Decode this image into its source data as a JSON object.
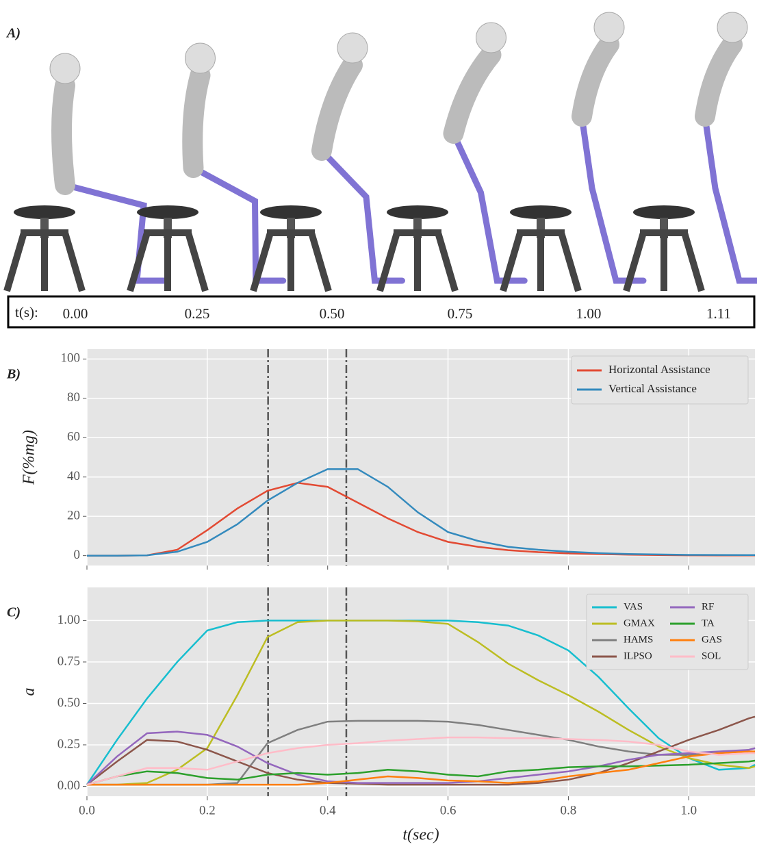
{
  "panel_a": {
    "label": "A)",
    "time_header": "t(s):",
    "times": [
      "0.00",
      "0.25",
      "0.50",
      "0.75",
      "1.00",
      "1.11"
    ]
  },
  "chart_data": [
    {
      "type": "line",
      "panel_label": "B)",
      "ylabel": "F(%mg)",
      "x": [
        0,
        0.05,
        0.1,
        0.15,
        0.2,
        0.25,
        0.3,
        0.35,
        0.4,
        0.45,
        0.5,
        0.55,
        0.6,
        0.65,
        0.7,
        0.75,
        0.8,
        0.85,
        0.9,
        0.95,
        1.0,
        1.05,
        1.1,
        1.11
      ],
      "xlim": [
        0,
        1.11
      ],
      "xticks": [
        0,
        0.2,
        0.4,
        0.6,
        0.8,
        1.0
      ],
      "ylim": [
        -5,
        105
      ],
      "yticks": [
        0,
        20,
        40,
        60,
        80,
        100
      ],
      "grid": true,
      "legend": "upper right",
      "legend_ncol": 1,
      "vlines": [
        0.301,
        0.431
      ],
      "series": [
        {
          "name": "Horizontal Assistance",
          "color": "#e24a33",
          "values": [
            0,
            0,
            0.2,
            3,
            13,
            24,
            33,
            37,
            35,
            27,
            19,
            12,
            7,
            4.5,
            2.8,
            1.8,
            1.2,
            0.8,
            0.5,
            0.3,
            0.2,
            0.15,
            0.1,
            0.1
          ]
        },
        {
          "name": "Vertical Assistance",
          "color": "#348abd",
          "values": [
            0,
            0,
            0.2,
            2,
            7,
            16,
            28,
            37,
            44,
            44,
            35,
            22,
            12,
            7.5,
            4.5,
            3,
            2,
            1.3,
            0.8,
            0.6,
            0.4,
            0.35,
            0.3,
            0.3
          ]
        }
      ]
    },
    {
      "type": "line",
      "panel_label": "C)",
      "ylabel": "a",
      "xlabel": "t(sec)",
      "x": [
        0,
        0.05,
        0.1,
        0.15,
        0.2,
        0.25,
        0.3,
        0.35,
        0.4,
        0.45,
        0.5,
        0.55,
        0.6,
        0.65,
        0.7,
        0.75,
        0.8,
        0.85,
        0.9,
        0.95,
        1.0,
        1.05,
        1.1,
        1.11
      ],
      "xlim": [
        0,
        1.11
      ],
      "xticks": [
        {
          "value": 0,
          "label": "0.0"
        },
        0.2,
        0.4,
        0.6,
        0.8,
        {
          "value": 1,
          "label": "1.0"
        }
      ],
      "ylim": [
        -0.06,
        1.2
      ],
      "yticks": [
        {
          "value": 0,
          "label": "0.00"
        },
        0.25,
        {
          "value": 0.5,
          "label": "0.50"
        },
        0.75,
        {
          "value": 1,
          "label": "1.00"
        }
      ],
      "grid": true,
      "legend": "upper right",
      "legend_ncol": 2,
      "vlines": [
        0.301,
        0.431
      ],
      "series": [
        {
          "name": "VAS",
          "color": "#17becf",
          "values": [
            0.01,
            0.28,
            0.53,
            0.75,
            0.94,
            0.99,
            1.0,
            1.0,
            1.0,
            1.0,
            1.0,
            1.0,
            1.0,
            0.99,
            0.97,
            0.91,
            0.82,
            0.66,
            0.47,
            0.29,
            0.17,
            0.1,
            0.11,
            0.13
          ]
        },
        {
          "name": "GMAX",
          "color": "#bcbd22",
          "values": [
            0.01,
            0.01,
            0.02,
            0.1,
            0.23,
            0.55,
            0.9,
            0.99,
            1.0,
            1.0,
            1.0,
            0.995,
            0.98,
            0.87,
            0.74,
            0.64,
            0.55,
            0.45,
            0.34,
            0.24,
            0.17,
            0.13,
            0.11,
            0.12
          ]
        },
        {
          "name": "HAMS",
          "color": "#7f7f7f",
          "values": [
            0.01,
            0.01,
            0.01,
            0.01,
            0.01,
            0.02,
            0.26,
            0.34,
            0.39,
            0.395,
            0.395,
            0.395,
            0.39,
            0.37,
            0.34,
            0.31,
            0.28,
            0.24,
            0.21,
            0.19,
            0.19,
            0.2,
            0.22,
            0.23
          ]
        },
        {
          "name": "ILPSO",
          "color": "#8c564b",
          "values": [
            0.01,
            0.15,
            0.28,
            0.27,
            0.22,
            0.15,
            0.08,
            0.04,
            0.02,
            0.015,
            0.01,
            0.01,
            0.01,
            0.01,
            0.01,
            0.02,
            0.04,
            0.08,
            0.14,
            0.21,
            0.28,
            0.34,
            0.41,
            0.42
          ]
        },
        {
          "name": "RF",
          "color": "#9467bd",
          "values": [
            0.01,
            0.18,
            0.32,
            0.33,
            0.31,
            0.24,
            0.14,
            0.07,
            0.03,
            0.02,
            0.02,
            0.02,
            0.02,
            0.03,
            0.05,
            0.07,
            0.09,
            0.12,
            0.16,
            0.19,
            0.2,
            0.21,
            0.22,
            0.23
          ]
        },
        {
          "name": "TA",
          "color": "#2ca02c",
          "values": [
            0.01,
            0.06,
            0.09,
            0.08,
            0.05,
            0.04,
            0.07,
            0.08,
            0.07,
            0.08,
            0.1,
            0.09,
            0.07,
            0.06,
            0.09,
            0.1,
            0.115,
            0.12,
            0.12,
            0.125,
            0.13,
            0.14,
            0.15,
            0.155
          ]
        },
        {
          "name": "GAS",
          "color": "#ff7f0e",
          "values": [
            0.01,
            0.01,
            0.01,
            0.01,
            0.01,
            0.01,
            0.01,
            0.01,
            0.02,
            0.04,
            0.06,
            0.05,
            0.035,
            0.03,
            0.02,
            0.03,
            0.06,
            0.08,
            0.1,
            0.14,
            0.18,
            0.2,
            0.21,
            0.21
          ]
        },
        {
          "name": "SOL",
          "color": "#ffbcc8",
          "values": [
            0.01,
            0.06,
            0.11,
            0.11,
            0.1,
            0.15,
            0.2,
            0.23,
            0.25,
            0.26,
            0.275,
            0.285,
            0.295,
            0.295,
            0.29,
            0.29,
            0.285,
            0.28,
            0.27,
            0.25,
            0.21,
            0.19,
            0.2,
            0.2
          ]
        }
      ]
    }
  ]
}
